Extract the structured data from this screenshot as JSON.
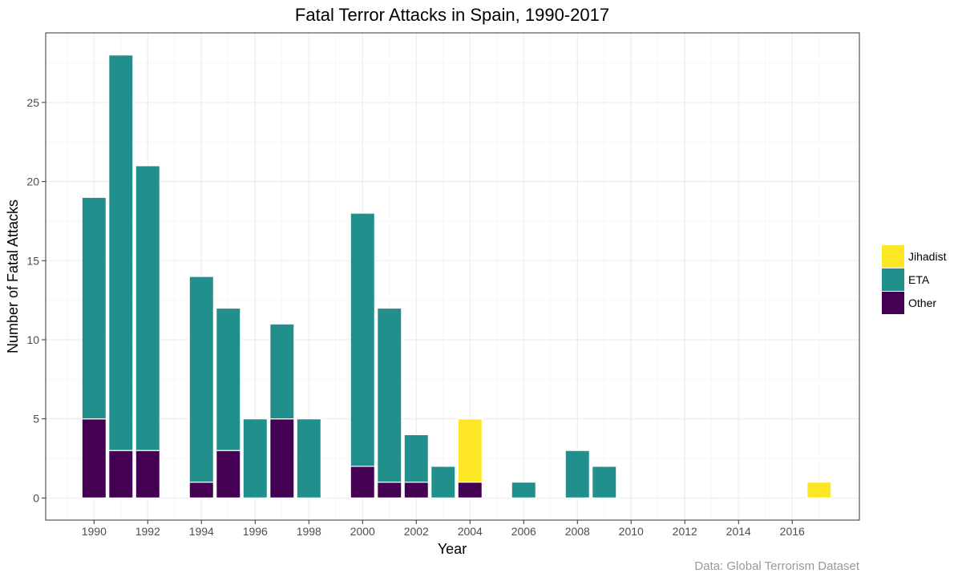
{
  "chart_data": {
    "type": "bar",
    "stacked": true,
    "title": "Fatal Terror Attacks in Spain, 1990-2017",
    "xlabel": "Year",
    "ylabel": "Number of Fatal Attacks",
    "caption": "Data: Global Terrorism Dataset",
    "xlim": [
      1988.2,
      2018.5
    ],
    "ylim": [
      -1.4,
      29.4
    ],
    "x_ticks": [
      "1990",
      "1992",
      "1994",
      "1996",
      "1998",
      "2000",
      "2002",
      "2004",
      "2006",
      "2008",
      "2010",
      "2012",
      "2014",
      "2016"
    ],
    "y_ticks": [
      "0",
      "5",
      "10",
      "15",
      "20",
      "25"
    ],
    "grid": true,
    "legend_position": "right",
    "legend": [
      {
        "name": "Jihadist",
        "color": "#FDE725"
      },
      {
        "name": "ETA",
        "color": "#21908C"
      },
      {
        "name": "Other",
        "color": "#440154"
      }
    ],
    "x": [
      1990,
      1991,
      1992,
      1994,
      1995,
      1996,
      1997,
      1998,
      2000,
      2001,
      2002,
      2003,
      2004,
      2006,
      2008,
      2009,
      2017
    ],
    "series": [
      {
        "name": "Other",
        "color": "#440154",
        "values": [
          5,
          3,
          3,
          1,
          3,
          0,
          5,
          0,
          2,
          1,
          1,
          0,
          1,
          0,
          0,
          0,
          0
        ]
      },
      {
        "name": "ETA",
        "color": "#21908C",
        "values": [
          14,
          25,
          18,
          13,
          9,
          5,
          6,
          5,
          16,
          11,
          3,
          2,
          0,
          1,
          3,
          2,
          0
        ]
      },
      {
        "name": "Jihadist",
        "color": "#FDE725",
        "values": [
          0,
          0,
          0,
          0,
          0,
          0,
          0,
          0,
          0,
          0,
          0,
          0,
          4,
          0,
          0,
          0,
          1
        ]
      }
    ]
  }
}
